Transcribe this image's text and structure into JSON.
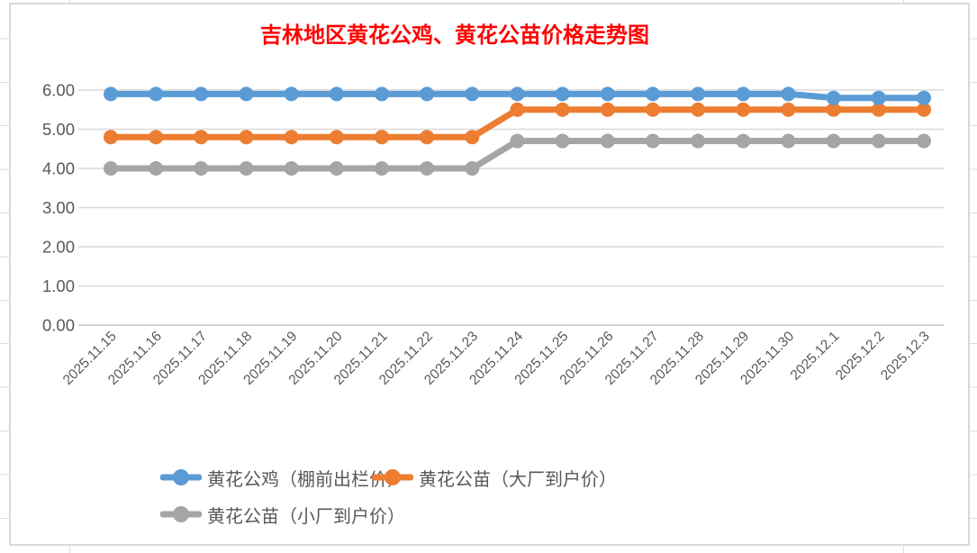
{
  "title": {
    "text": "吉林地区黄花公鸡、黄花公苗价格走势图",
    "color": "#FF0000"
  },
  "chart_data": {
    "type": "line",
    "title": "吉林地区黄花公鸡、黄花公苗价格走势图",
    "categories": [
      "2025.11.15",
      "2025.11.16",
      "2025.11.17",
      "2025.11.18",
      "2025.11.19",
      "2025.11.20",
      "2025.11.21",
      "2025.11.22",
      "2025.11.23",
      "2025.11.24",
      "2025.11.25",
      "2025.11.26",
      "2025.11.27",
      "2025.11.28",
      "2025.11.29",
      "2025.11.30",
      "2025.12.1",
      "2025.12.2",
      "2025.12.3"
    ],
    "series": [
      {
        "name": "黄花公鸡（棚前出栏价）",
        "color": "#5B9BD5",
        "values": [
          5.9,
          5.9,
          5.9,
          5.9,
          5.9,
          5.9,
          5.9,
          5.9,
          5.9,
          5.9,
          5.9,
          5.9,
          5.9,
          5.9,
          5.9,
          5.9,
          5.8,
          5.8,
          5.8
        ]
      },
      {
        "name": "黄花公苗（大厂到户价）",
        "color": "#ED7D31",
        "values": [
          4.8,
          4.8,
          4.8,
          4.8,
          4.8,
          4.8,
          4.8,
          4.8,
          4.8,
          5.5,
          5.5,
          5.5,
          5.5,
          5.5,
          5.5,
          5.5,
          5.5,
          5.5,
          5.5
        ]
      },
      {
        "name": "黄花公苗（小厂到户价）",
        "color": "#A5A5A5",
        "values": [
          4.0,
          4.0,
          4.0,
          4.0,
          4.0,
          4.0,
          4.0,
          4.0,
          4.0,
          4.7,
          4.7,
          4.7,
          4.7,
          4.7,
          4.7,
          4.7,
          4.7,
          4.7,
          4.7
        ]
      }
    ],
    "xlabel": "",
    "ylabel": "",
    "ylim": [
      0,
      6
    ],
    "y_ticks": [
      "0.00",
      "1.00",
      "2.00",
      "3.00",
      "4.00",
      "5.00",
      "6.00"
    ],
    "grid": true,
    "legend_position": "bottom",
    "axis_label_color": "#595959",
    "gridline_color": "#D9D9D9"
  }
}
